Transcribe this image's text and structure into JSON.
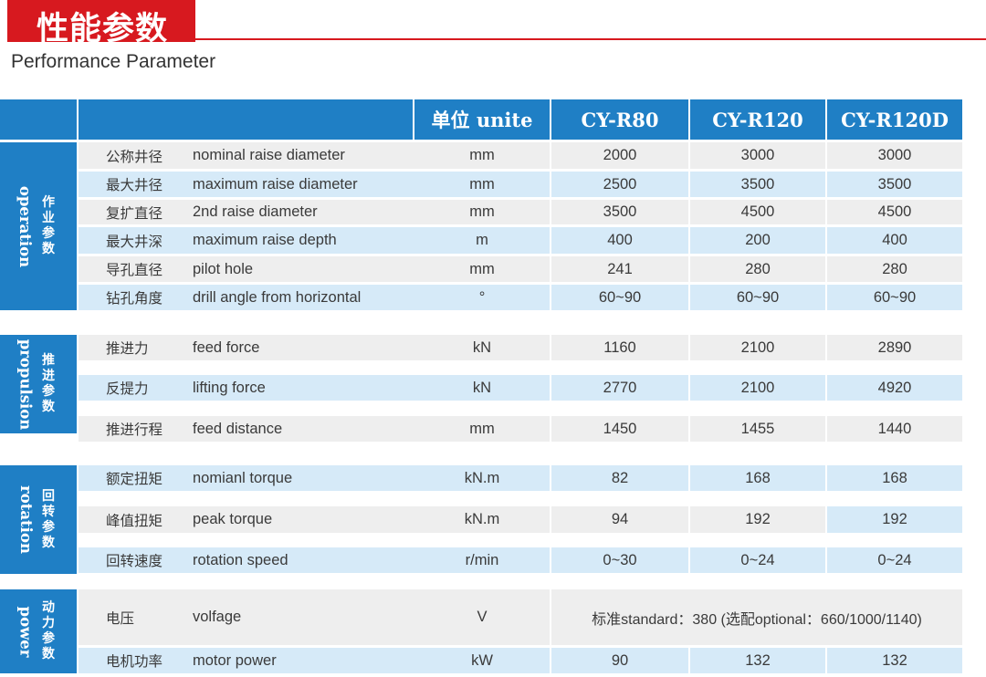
{
  "header": {
    "title_zh": "性能参数",
    "title_en": "Performance Parameter"
  },
  "colors": {
    "accent_red": "#d7191f",
    "header_blue": "#1f7fc5",
    "row_gray": "#eeeeee",
    "row_blue": "#d6eaf8",
    "row_white": "#ffffff"
  },
  "table": {
    "columns": [
      "单位 unite",
      "CY-R80",
      "CY-R120",
      "CY-R120D"
    ],
    "groups": [
      {
        "zh": [
          "作",
          "业",
          "参",
          "数"
        ],
        "en": "operation",
        "rows": [
          {
            "zh": "公称井径",
            "en": "nominal raise diameter",
            "unit": "mm",
            "values": [
              "2000",
              "3000",
              "3000"
            ]
          },
          {
            "zh": "最大井径",
            "en": "maximum raise diameter",
            "unit": "mm",
            "values": [
              "2500",
              "3500",
              "3500"
            ]
          },
          {
            "zh": "复扩直径",
            "en": "2nd raise diameter",
            "unit": "mm",
            "values": [
              "3500",
              "4500",
              "4500"
            ]
          },
          {
            "zh": "最大井深",
            "en": "maximum raise depth",
            "unit": "m",
            "values": [
              "400",
              "200",
              "400"
            ]
          },
          {
            "zh": "导孔直径",
            "en": "pilot hole",
            "unit": "mm",
            "values": [
              "241",
              "280",
              "280"
            ]
          },
          {
            "zh": "钻孔角度",
            "en": "drill angle from horizontal",
            "unit": "°",
            "values": [
              "60~90",
              "60~90",
              "60~90"
            ]
          }
        ]
      },
      {
        "zh": [
          "推",
          "进",
          "参",
          "数"
        ],
        "en": "propulsion",
        "rows": [
          {
            "zh": "推进力",
            "en": "feed force",
            "unit": "kN",
            "values": [
              "1160",
              "2100",
              "2890"
            ]
          },
          {
            "zh": "反提力",
            "en": "lifting force",
            "unit": "kN",
            "values": [
              "2770",
              "2100",
              "4920"
            ]
          },
          {
            "zh": "推进行程",
            "en": "feed distance",
            "unit": "mm",
            "values": [
              "1450",
              "1455",
              "1440"
            ]
          }
        ]
      },
      {
        "zh": [
          "回",
          "转",
          "参",
          "数"
        ],
        "en": "rotation",
        "rows": [
          {
            "zh": "额定扭矩",
            "en": "nomianl torque",
            "unit": "kN.m",
            "values": [
              "82",
              "168",
              "168"
            ]
          },
          {
            "zh": "峰值扭矩",
            "en": "peak torque",
            "unit": "kN.m",
            "values": [
              "94",
              "192",
              "192"
            ]
          },
          {
            "zh": "回转速度",
            "en": "rotation speed",
            "unit": "r/min",
            "values": [
              "0~30",
              "0~24",
              "0~24"
            ]
          }
        ]
      },
      {
        "zh": [
          "动",
          "力",
          "参",
          "数"
        ],
        "en": "power",
        "rows": [
          {
            "zh": "电压",
            "en": "volfage",
            "unit": "V",
            "merged": "标准standard：380 (选配optional：660/1000/1140)"
          },
          {
            "zh": "电机功率",
            "en": "motor power",
            "unit": "kW",
            "values": [
              "90",
              "132",
              "132"
            ]
          }
        ]
      }
    ]
  }
}
